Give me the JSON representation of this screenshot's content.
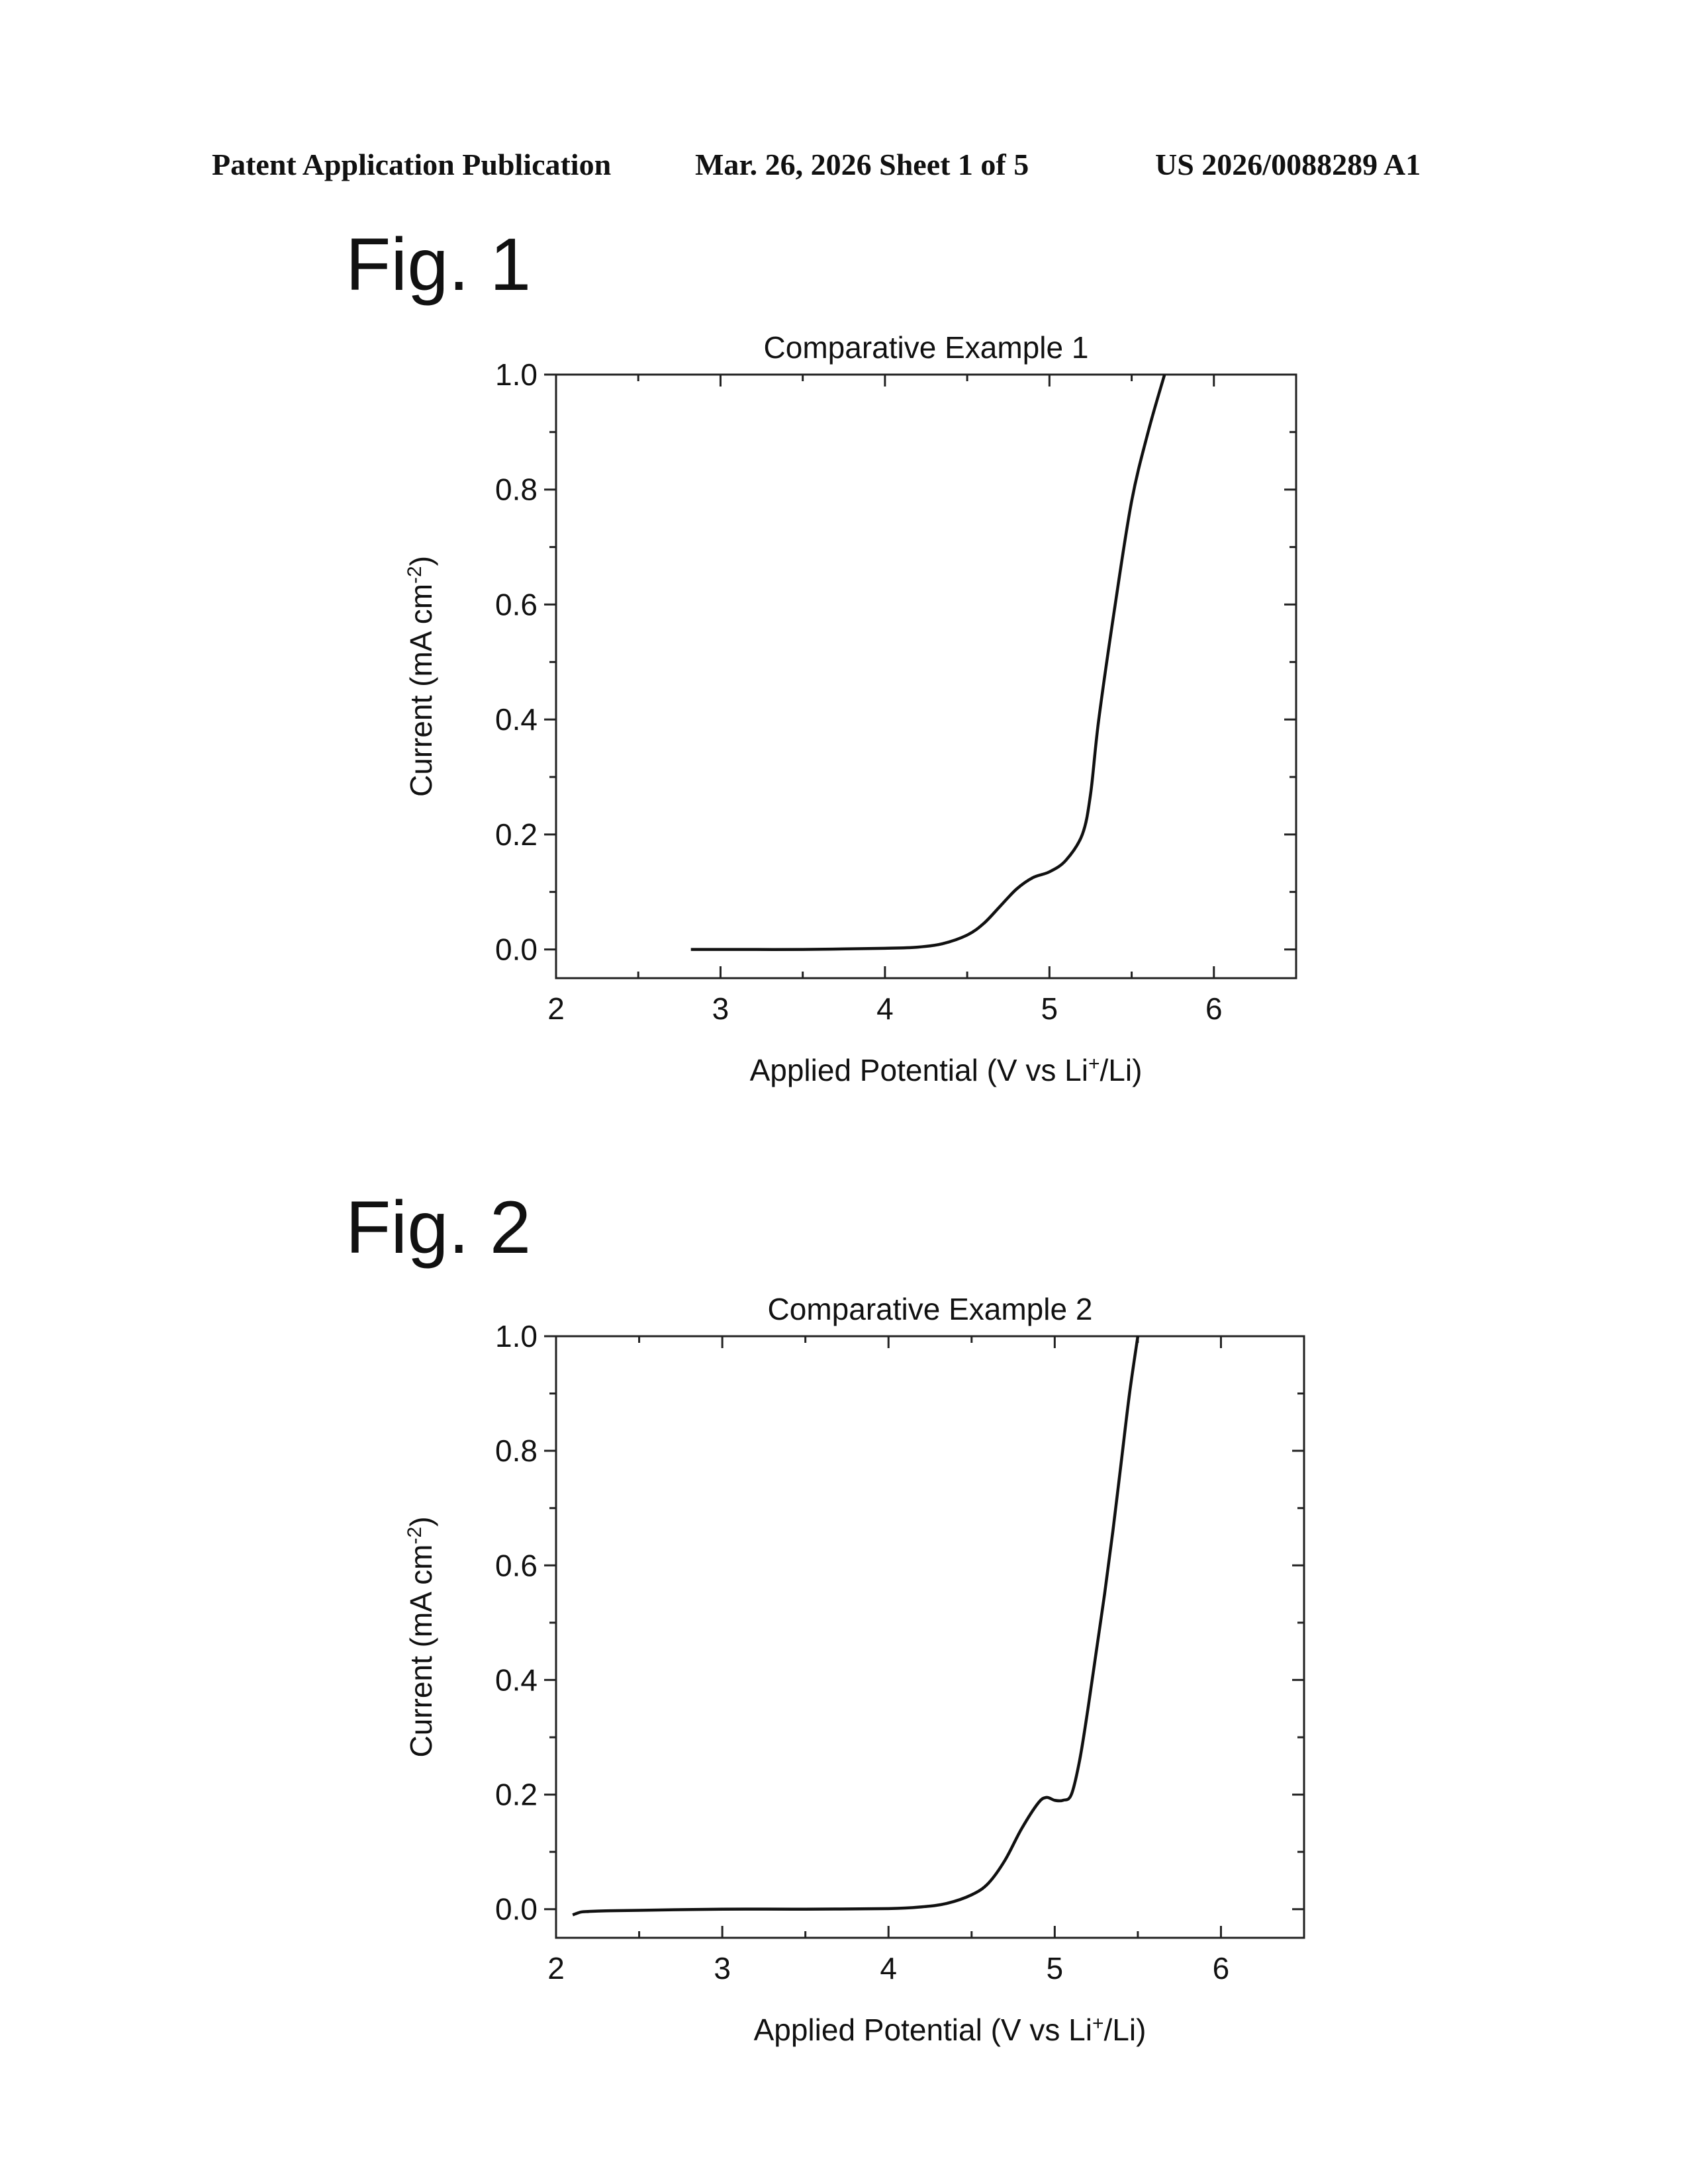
{
  "header": {
    "publication": "Patent Application Publication",
    "date_sheet": "Mar. 26, 2026  Sheet 1 of 5",
    "number": "US 2026/0088289 A1"
  },
  "figures": [
    {
      "label": "Fig. 1"
    },
    {
      "label": "Fig. 2"
    }
  ],
  "chart_data": [
    {
      "type": "line",
      "title": "Comparative Example 1",
      "xlabel": "Applied Potential (V vs Li+/Li)",
      "ylabel": "Current (mA cm-2)",
      "xlim": [
        2,
        6.5
      ],
      "ylim": [
        -0.05,
        1.0
      ],
      "xticks": [
        "2",
        "3",
        "4",
        "5",
        "6"
      ],
      "yticks": [
        "0.0",
        "0.2",
        "0.4",
        "0.6",
        "0.8",
        "1.0"
      ],
      "grid": false,
      "series": [
        {
          "x": [
            2.82,
            3.0,
            3.5,
            4.0,
            4.2,
            4.35,
            4.5,
            4.6,
            4.7,
            4.8,
            4.9,
            5.0,
            5.1,
            5.2,
            5.25,
            5.3,
            5.4,
            5.5,
            5.6,
            5.7
          ],
          "y": [
            0.0,
            0.0,
            0.0,
            0.002,
            0.004,
            0.01,
            0.025,
            0.045,
            0.075,
            0.105,
            0.125,
            0.135,
            0.155,
            0.2,
            0.27,
            0.4,
            0.6,
            0.78,
            0.9,
            1.0
          ]
        }
      ]
    },
    {
      "type": "line",
      "title": "Comparative Example 2",
      "xlabel": "Applied Potential (V vs Li+/Li)",
      "ylabel": "Current (mA cm-2)",
      "xlim": [
        2,
        6.5
      ],
      "ylim": [
        -0.05,
        1.0
      ],
      "xticks": [
        "2",
        "3",
        "4",
        "5",
        "6"
      ],
      "yticks": [
        "0.0",
        "0.2",
        "0.4",
        "0.6",
        "0.8",
        "1.0"
      ],
      "grid": false,
      "series": [
        {
          "x": [
            2.1,
            2.15,
            2.2,
            2.3,
            2.5,
            3.0,
            3.5,
            4.0,
            4.2,
            4.35,
            4.5,
            4.6,
            4.7,
            4.8,
            4.9,
            4.95,
            5.0,
            5.05,
            5.1,
            5.15,
            5.2,
            5.25,
            5.3,
            5.35,
            5.4,
            5.45,
            5.5
          ],
          "y": [
            -0.01,
            -0.005,
            -0.004,
            -0.003,
            -0.002,
            0.0,
            0.0,
            0.001,
            0.004,
            0.01,
            0.025,
            0.045,
            0.085,
            0.14,
            0.185,
            0.195,
            0.19,
            0.19,
            0.2,
            0.26,
            0.35,
            0.45,
            0.55,
            0.66,
            0.78,
            0.9,
            1.0
          ]
        }
      ]
    }
  ]
}
